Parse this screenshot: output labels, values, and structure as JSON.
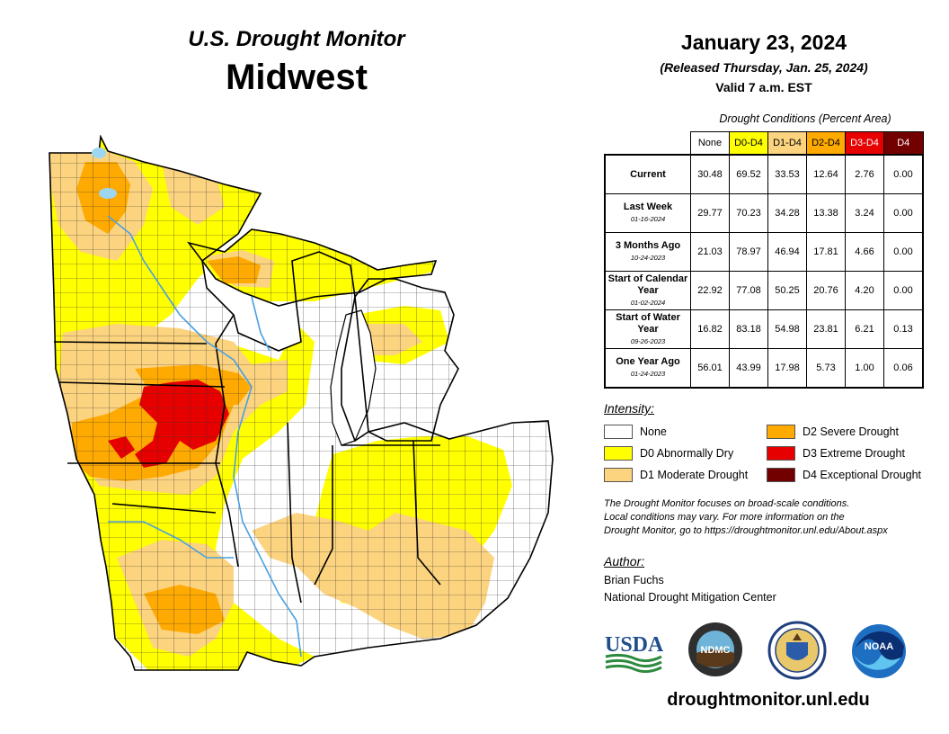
{
  "header": {
    "subtitle": "U.S. Drought Monitor",
    "region": "Midwest",
    "date": "January 23, 2024",
    "released": "(Released Thursday, Jan. 25, 2024)",
    "valid": "Valid 7 a.m. EST"
  },
  "conditions": {
    "title": "Drought Conditions (Percent Area)",
    "columns": [
      {
        "label": "None",
        "color": "#ffffff",
        "text_color": "#000000"
      },
      {
        "label": "D0-D4",
        "color": "#ffff00",
        "text_color": "#000000"
      },
      {
        "label": "D1-D4",
        "color": "#fcd37f",
        "text_color": "#000000"
      },
      {
        "label": "D2-D4",
        "color": "#ffaa00",
        "text_color": "#000000"
      },
      {
        "label": "D3-D4",
        "color": "#e60000",
        "text_color": "#ffffff"
      },
      {
        "label": "D4",
        "color": "#730000",
        "text_color": "#ffffff"
      }
    ],
    "rows": [
      {
        "label": "Current",
        "sub": "",
        "values": [
          "30.48",
          "69.52",
          "33.53",
          "12.64",
          "2.76",
          "0.00"
        ]
      },
      {
        "label": "Last Week",
        "sub": "01-16-2024",
        "values": [
          "29.77",
          "70.23",
          "34.28",
          "13.38",
          "3.24",
          "0.00"
        ]
      },
      {
        "label": "3 Months Ago",
        "sub": "10-24-2023",
        "values": [
          "21.03",
          "78.97",
          "46.94",
          "17.81",
          "4.66",
          "0.00"
        ]
      },
      {
        "label": "Start of Calendar Year",
        "sub": "01-02-2024",
        "values": [
          "22.92",
          "77.08",
          "50.25",
          "20.76",
          "4.20",
          "0.00"
        ]
      },
      {
        "label": "Start of Water Year",
        "sub": "09-26-2023",
        "values": [
          "16.82",
          "83.18",
          "54.98",
          "23.81",
          "6.21",
          "0.13"
        ]
      },
      {
        "label": "One Year Ago",
        "sub": "01-24-2023",
        "values": [
          "56.01",
          "43.99",
          "17.98",
          "5.73",
          "1.00",
          "0.06"
        ]
      }
    ]
  },
  "legend": {
    "title": "Intensity:",
    "items": [
      {
        "label": "None",
        "color": "#ffffff"
      },
      {
        "label": "D0 Abnormally Dry",
        "color": "#ffff00"
      },
      {
        "label": "D1 Moderate Drought",
        "color": "#fcd37f"
      },
      {
        "label": "D2 Severe Drought",
        "color": "#ffaa00"
      },
      {
        "label": "D3 Extreme Drought",
        "color": "#e60000"
      },
      {
        "label": "D4 Exceptional Drought",
        "color": "#730000"
      }
    ]
  },
  "note": {
    "line1": "The Drought Monitor focuses on broad-scale conditions.",
    "line2": "Local conditions may vary. For more information on the",
    "line3": "Drought Monitor, go to https://droughtmonitor.unl.edu/About.aspx"
  },
  "author": {
    "title": "Author:",
    "name": "Brian Fuchs",
    "org": "National Drought Mitigation Center"
  },
  "logos": {
    "usda": "USDA",
    "ndmc": "NDMC",
    "noaa": "NOAA"
  },
  "site": "droughtmonitor.unl.edu",
  "map_colors": {
    "none": "#ffffff",
    "d0": "#ffff00",
    "d1": "#fcd37f",
    "d2": "#ffaa00",
    "d3": "#e60000",
    "water": "#9cd6f0",
    "river": "#4aa0e0"
  }
}
